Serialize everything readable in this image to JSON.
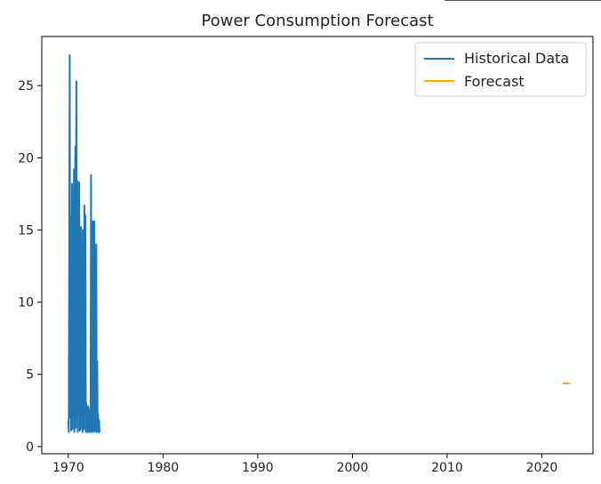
{
  "chart_data": {
    "type": "line",
    "title": "Power Consumption Forecast",
    "xlabel": "",
    "ylabel": "",
    "xlim": [
      1967.2,
      2025.4
    ],
    "ylim": [
      -0.5,
      28.4
    ],
    "xticks": [
      1970,
      1980,
      1990,
      2000,
      2010,
      2020
    ],
    "yticks": [
      0,
      5,
      10,
      15,
      20,
      25
    ],
    "grid": false,
    "legend": "top-right",
    "series": [
      {
        "name": "Historical Data",
        "color": "#1f77b4",
        "x": [
          1970.0,
          1970.05,
          1970.1,
          1970.15,
          1970.2,
          1970.25,
          1970.3,
          1970.35,
          1970.4,
          1970.45,
          1970.5,
          1970.55,
          1970.6,
          1970.65,
          1970.7,
          1970.75,
          1970.8,
          1970.85,
          1970.9,
          1970.95,
          1971.0,
          1971.05,
          1971.1,
          1971.15,
          1971.2,
          1971.25,
          1971.3,
          1971.35,
          1971.4,
          1971.45,
          1971.5,
          1971.55,
          1971.6,
          1971.65,
          1971.7,
          1971.75,
          1971.8,
          1971.85,
          1971.9,
          1971.95,
          1972.0,
          1972.05,
          1972.1,
          1972.15,
          1972.2,
          1972.25,
          1972.3,
          1972.35,
          1972.4,
          1972.45,
          1972.5,
          1972.55,
          1972.6,
          1972.65,
          1972.7,
          1972.75,
          1972.8,
          1972.85,
          1972.9,
          1972.95,
          1973.0,
          1973.05,
          1973.1,
          1973.15,
          1973.2,
          1973.25,
          1973.3,
          1973.35
        ],
        "values": [
          1.8,
          1.0,
          14.0,
          27.1,
          2.0,
          15.9,
          1.1,
          12.0,
          18.2,
          1.2,
          16.0,
          2.1,
          19.2,
          1.0,
          17.5,
          20.8,
          1.3,
          25.3,
          2.0,
          18.4,
          1.0,
          15.0,
          2.2,
          18.3,
          1.1,
          14.2,
          1.2,
          15.2,
          2.0,
          12.0,
          1.0,
          15.0,
          10.7,
          1.2,
          16.7,
          2.3,
          16.0,
          1.0,
          3.0,
          1.1,
          2.5,
          1.0,
          2.8,
          1.3,
          2.0,
          1.0,
          2.6,
          1.2,
          18.8,
          1.0,
          2.4,
          1.0,
          15.6,
          1.1,
          2.7,
          15.6,
          1.0,
          2.3,
          1.2,
          14.0,
          1.0,
          5.9,
          1.1,
          2.2,
          1.0,
          1.8,
          1.0,
          1.0
        ]
      },
      {
        "name": "Forecast",
        "color": "#ffa500",
        "x": [
          2022.2,
          2022.4,
          2022.6,
          2022.8,
          2023.0
        ],
        "values": [
          4.35,
          4.37,
          4.36,
          4.38,
          4.37
        ]
      }
    ]
  }
}
